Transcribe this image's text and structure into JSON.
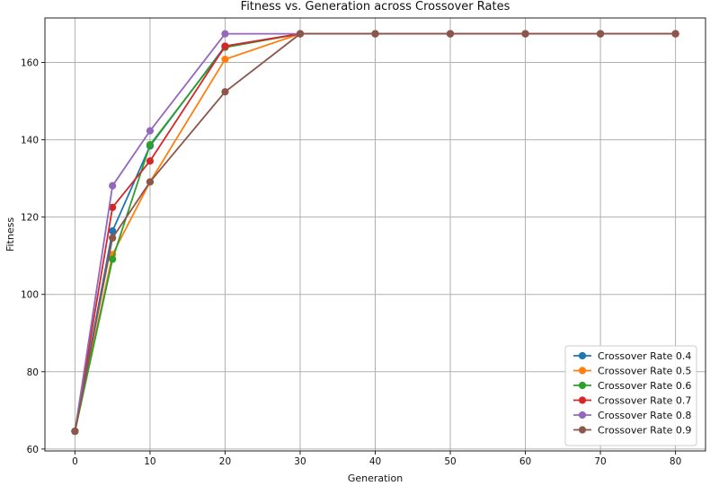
{
  "chart_data": {
    "type": "line",
    "title": "Fitness vs. Generation across Crossover Rates",
    "xlabel": "Generation",
    "ylabel": "Fitness",
    "x": [
      0,
      5,
      10,
      20,
      30,
      40,
      50,
      60,
      70,
      80
    ],
    "xlim": [
      -4,
      84
    ],
    "ylim": [
      59.5,
      171.5
    ],
    "xticks": [
      0,
      10,
      20,
      30,
      40,
      50,
      60,
      70,
      80
    ],
    "yticks": [
      60,
      80,
      100,
      120,
      140,
      160
    ],
    "grid": true,
    "legend_position": "bottom-right",
    "series": [
      {
        "name": "Crossover Rate 0.4",
        "color": "#1f77b4",
        "values": [
          64.6,
          116.4,
          138.4,
          164.2,
          167.4,
          167.4,
          167.4,
          167.4,
          167.4,
          167.4
        ]
      },
      {
        "name": "Crossover Rate 0.5",
        "color": "#ff7f0e",
        "values": [
          64.6,
          110.3,
          129.1,
          160.8,
          167.4,
          167.4,
          167.4,
          167.4,
          167.4,
          167.4
        ]
      },
      {
        "name": "Crossover Rate 0.6",
        "color": "#2ca02c",
        "values": [
          64.6,
          109.1,
          138.7,
          163.9,
          167.4,
          167.4,
          167.4,
          167.4,
          167.4,
          167.4
        ]
      },
      {
        "name": "Crossover Rate 0.7",
        "color": "#d62728",
        "values": [
          64.6,
          122.5,
          134.5,
          164.2,
          167.4,
          167.4,
          167.4,
          167.4,
          167.4,
          167.4
        ]
      },
      {
        "name": "Crossover Rate 0.8",
        "color": "#9467bd",
        "values": [
          64.6,
          128.1,
          142.3,
          167.4,
          167.4,
          167.4,
          167.4,
          167.4,
          167.4,
          167.4
        ]
      },
      {
        "name": "Crossover Rate 0.9",
        "color": "#8c564b",
        "values": [
          64.6,
          114.6,
          129.1,
          152.4,
          167.4,
          167.4,
          167.4,
          167.4,
          167.4,
          167.4
        ]
      }
    ]
  }
}
